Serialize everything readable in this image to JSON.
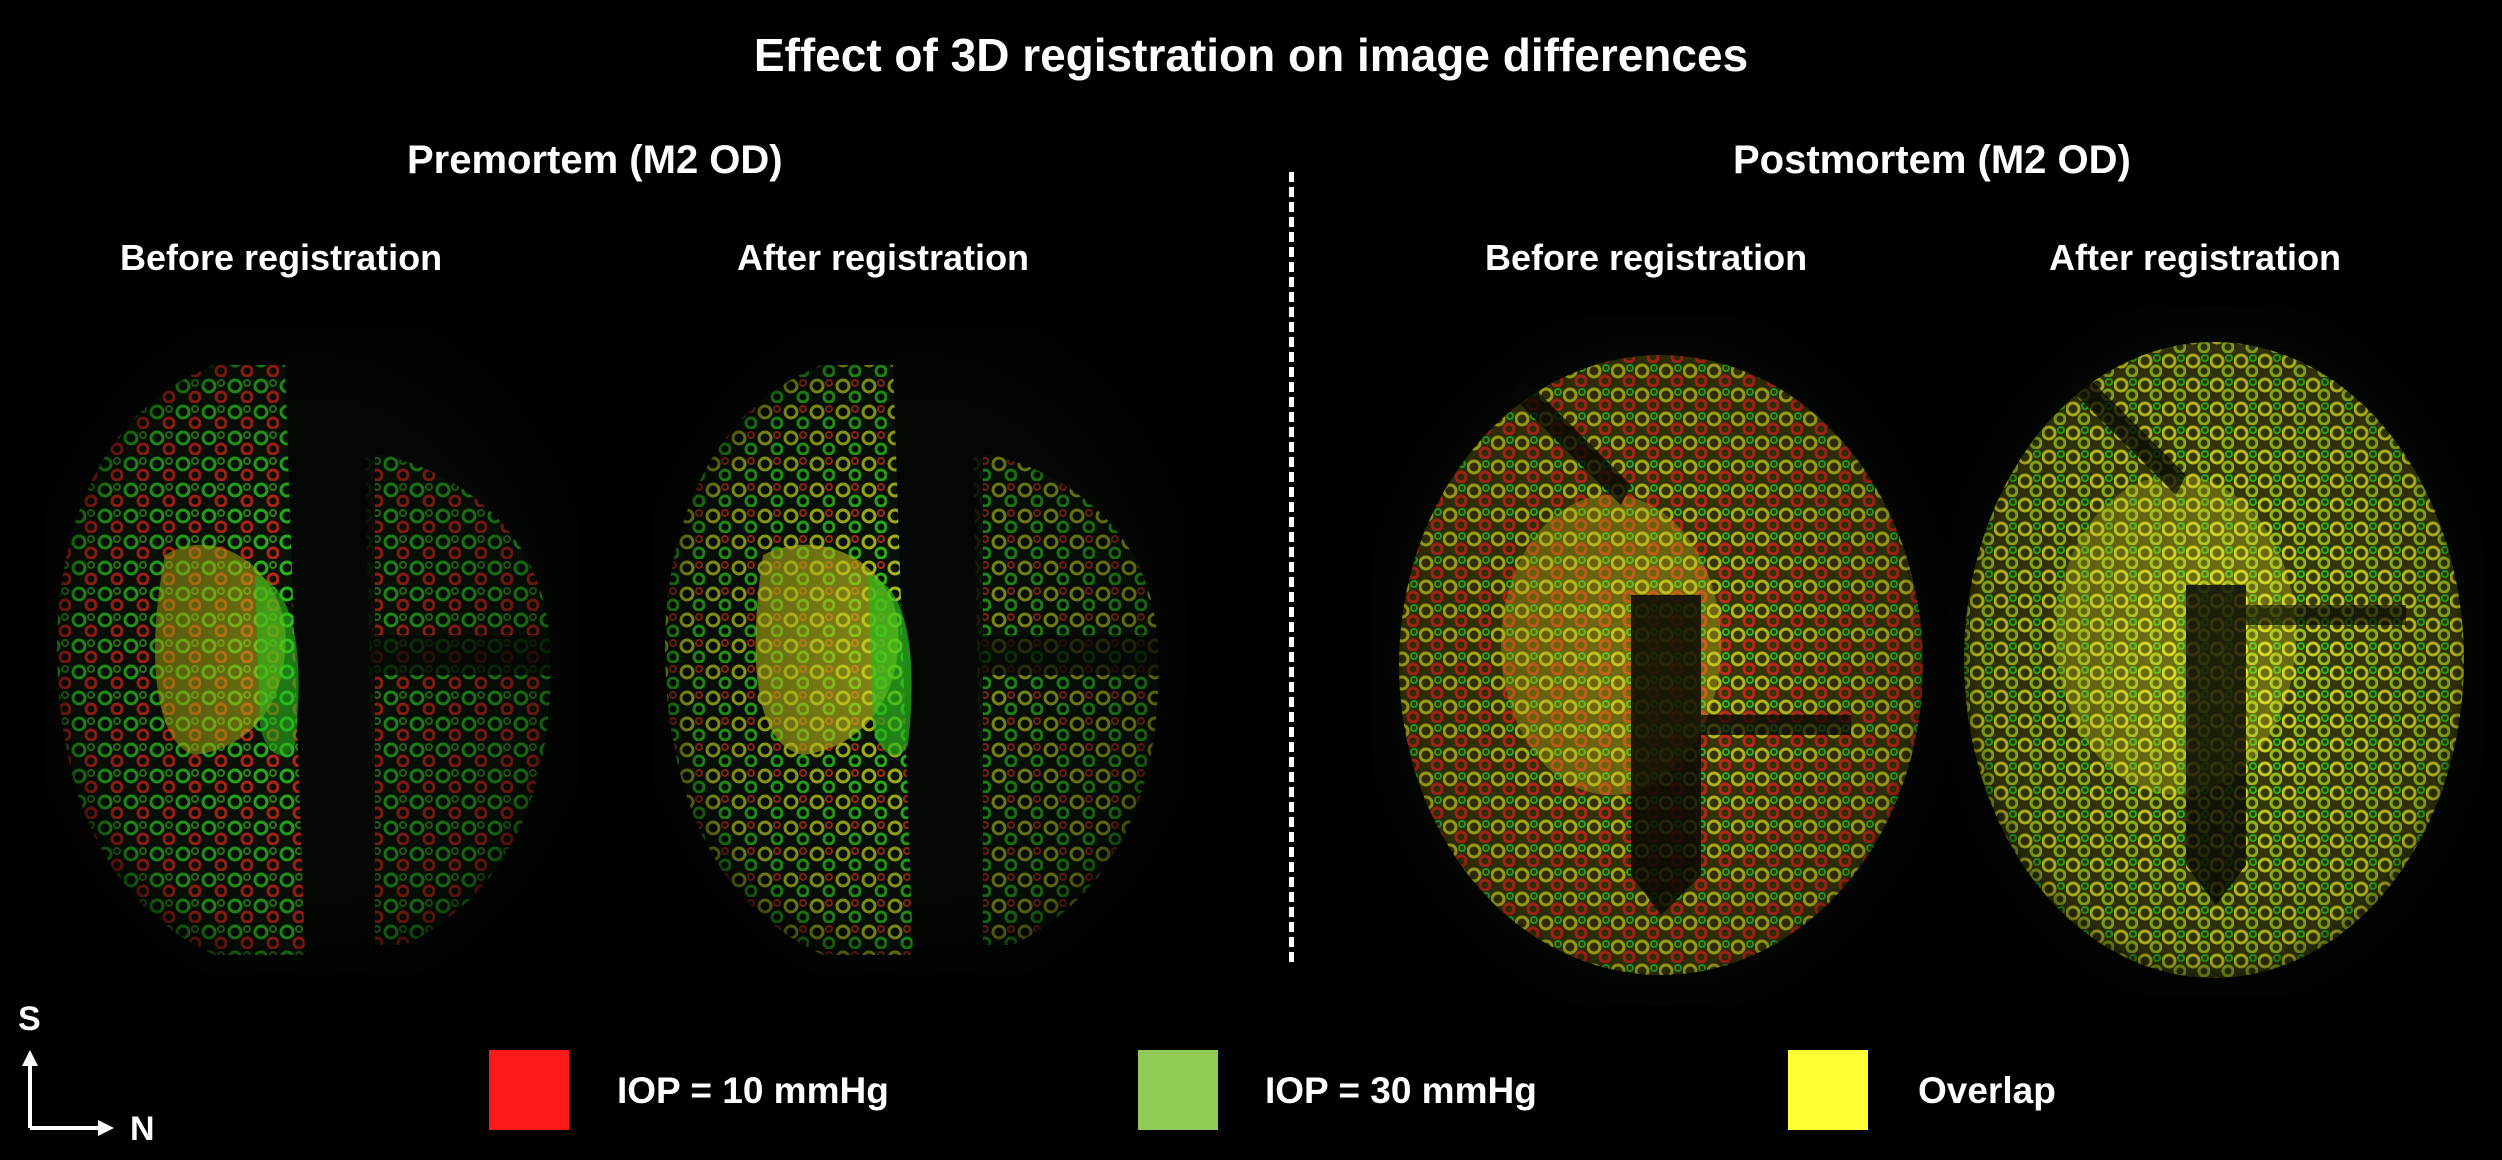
{
  "title": "Effect of 3D registration on image differences",
  "sections": [
    {
      "title": "Premortem (M2 OD)",
      "panels": [
        {
          "label": "Before registration"
        },
        {
          "label": "After registration"
        }
      ]
    },
    {
      "title": "Postmortem (M2 OD)",
      "panels": [
        {
          "label": "Before registration"
        },
        {
          "label": "After registration"
        }
      ]
    }
  ],
  "legend": [
    {
      "label": "IOP = 10 mmHg",
      "color": "#ff1a1a"
    },
    {
      "label": "IOP = 30 mmHg",
      "color": "#8fcc55"
    },
    {
      "label": "Overlap",
      "color": "#ffff33"
    }
  ],
  "orientation": {
    "vertical": "S",
    "horizontal": "N"
  },
  "colors": {
    "background": "#000000",
    "tissue_red": "#d42a18",
    "tissue_green": "#2fc81e",
    "tissue_yellow": "#d8d820"
  }
}
